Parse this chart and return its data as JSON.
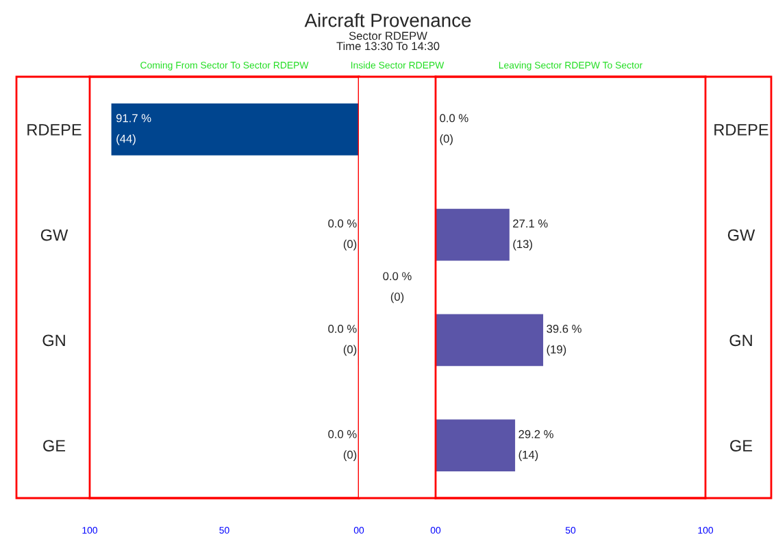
{
  "chart_data": [
    {
      "type": "bar",
      "orientation": "horizontal",
      "title": "Coming From Sector To Sector RDEPW",
      "categories": [
        "RDEPE",
        "GW",
        "GN",
        "GE"
      ],
      "values": [
        91.7,
        0.0,
        0.0,
        0.0
      ],
      "color": "#00458f",
      "value_labels": [
        "91.7 %\n(44)",
        "0.0 %\n(0)",
        "0.0 %\n(0)",
        "0.0 %\n(0)"
      ],
      "xlim": [
        100,
        0
      ],
      "xticks": [
        100,
        50,
        {
          "value": 0,
          "label": "00"
        }
      ],
      "grid": false,
      "legend": false
    },
    {
      "type": "other",
      "title": "Aircraft Provenance",
      "subtitle": "Sector RDEPW\nTime 13:30 To 14:30",
      "annotations": [
        "Inside Sector RDEPW",
        "0.0 %\n(0)"
      ]
    },
    {
      "type": "bar",
      "orientation": "horizontal",
      "title": "Leaving Sector RDEPW To Sector",
      "categories": [
        "RDEPE",
        "GW",
        "GN",
        "GE"
      ],
      "values": [
        0.0,
        27.1,
        39.6,
        29.2
      ],
      "color": "#5b55a8",
      "value_labels": [
        "0.0 %\n(0)",
        "27.1 %\n(13)",
        "39.6 %\n(19)",
        "29.2 %\n(14)"
      ],
      "xlim": [
        0,
        100
      ],
      "xticks": [
        {
          "value": 0,
          "label": "00"
        },
        50,
        100
      ],
      "grid": false,
      "legend": false
    }
  ]
}
